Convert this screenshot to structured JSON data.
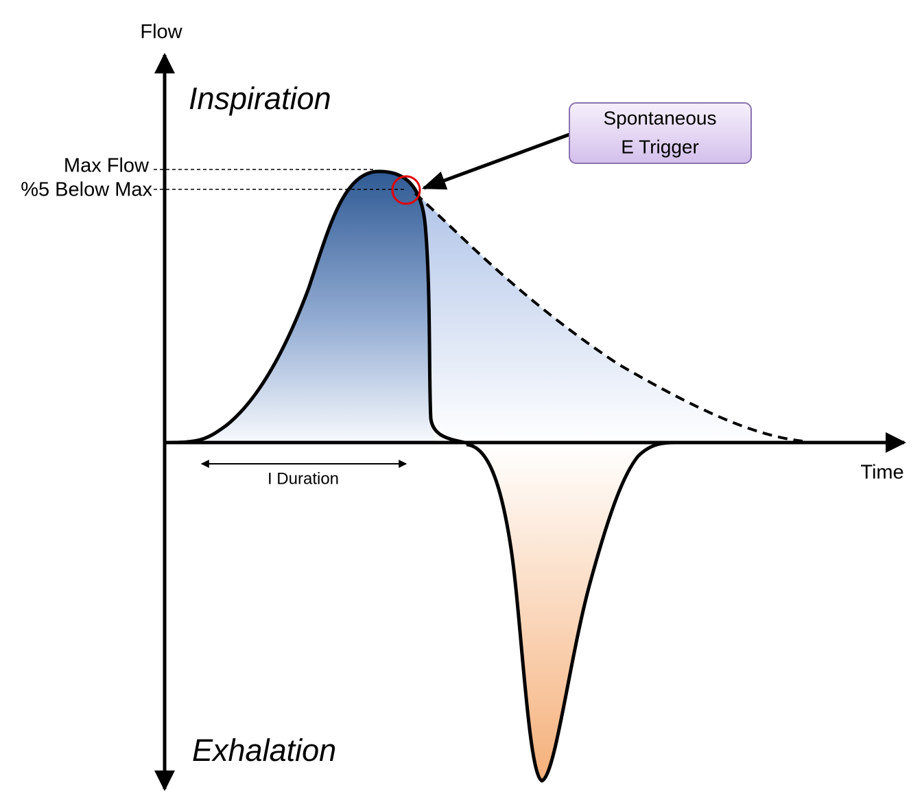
{
  "axes": {
    "y_label": "Flow",
    "x_label": "Time"
  },
  "regions": {
    "inspiration": "Inspiration",
    "exhalation": "Exhalation"
  },
  "levels": {
    "max_flow": "Max Flow",
    "below_max": "%5 Below Max"
  },
  "duration_label": "I Duration",
  "callout": {
    "lines": [
      "Spontaneous",
      "E Trigger"
    ]
  }
}
